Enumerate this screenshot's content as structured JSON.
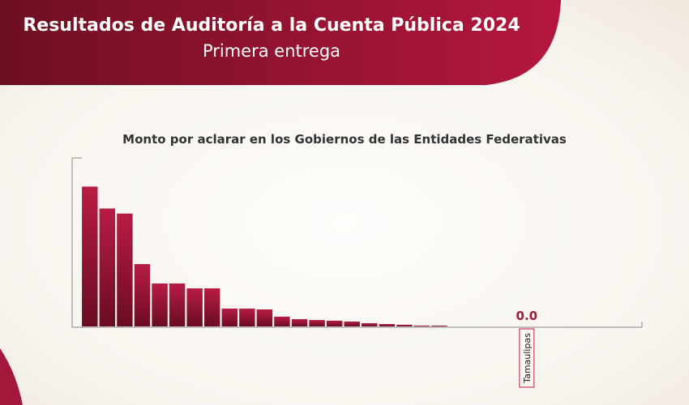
{
  "header": {
    "title": "Resultados de Auditoría a la Cuenta Pública 2024",
    "subtitle": "Primera entrega"
  },
  "chart_data": {
    "type": "bar",
    "title": "Monto por aclarar en los Gobiernos de las Entidades Federativas",
    "categories": [
      null,
      null,
      null,
      null,
      null,
      null,
      null,
      null,
      null,
      null,
      null,
      null,
      null,
      null,
      null,
      null,
      null,
      null,
      null,
      null,
      null,
      null,
      null,
      null,
      null,
      "Tamaulipas",
      null,
      null,
      null,
      null,
      null,
      null
    ],
    "values": [
      83,
      70,
      67,
      37,
      25.5,
      25.5,
      22.6,
      22.6,
      10.6,
      10.6,
      10.1,
      5.8,
      4.3,
      3.8,
      3.4,
      2.9,
      1.9,
      1.4,
      1,
      0.5,
      0.5,
      0,
      0,
      0,
      0,
      0,
      0,
      0,
      0,
      0,
      0,
      0
    ],
    "value_labels": [
      null,
      null,
      null,
      null,
      null,
      null,
      null,
      null,
      null,
      null,
      null,
      null,
      null,
      null,
      null,
      null,
      null,
      null,
      null,
      null,
      null,
      null,
      null,
      null,
      null,
      "0.0",
      null,
      null,
      null,
      null,
      null,
      null
    ],
    "color": "#9e1a3a",
    "ylim": [
      0,
      100
    ]
  }
}
